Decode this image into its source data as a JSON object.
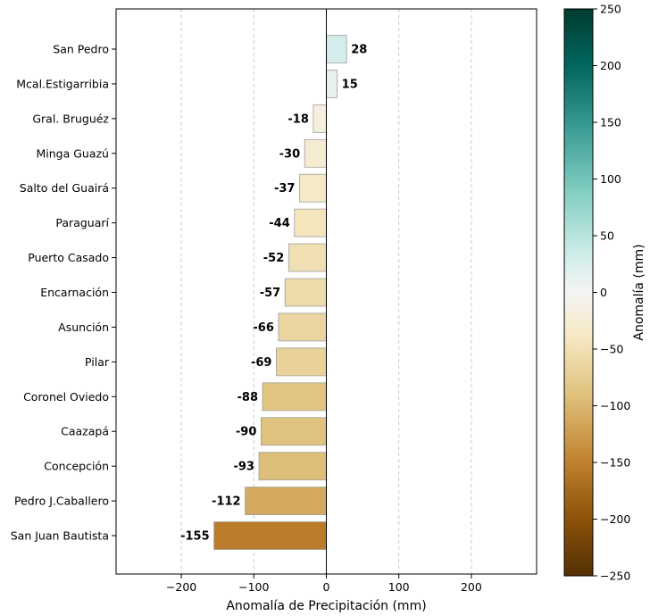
{
  "chart_data": {
    "type": "bar",
    "orientation": "horizontal",
    "xlabel": "Anomalía de Precipitación (mm)",
    "ylabel": "",
    "title": "",
    "xlim": [
      -290,
      290
    ],
    "xticks": [
      -200,
      -100,
      0,
      100,
      200
    ],
    "grid": "vertical dashed",
    "categories": [
      "San Pedro",
      "Mcal.Estigarribia",
      "Gral. Bruguéz",
      "Minga Guazú",
      "Salto del Guairá",
      "Paraguarí",
      "Puerto Casado",
      "Encarnación",
      "Asunción",
      "Pilar",
      "Coronel Oviedo",
      "Caazapá",
      "Concepción",
      "Pedro J.Caballero",
      "San Juan Bautista"
    ],
    "values": [
      28,
      15,
      -18,
      -30,
      -37,
      -44,
      -52,
      -57,
      -66,
      -69,
      -88,
      -90,
      -93,
      -112,
      -155
    ],
    "value_labels": [
      "28",
      "15",
      "-18",
      "-30",
      "-37",
      "-44",
      "-52",
      "-57",
      "-66",
      "-69",
      "-88",
      "-90",
      "-93",
      "-112",
      "-155"
    ],
    "colorbar": {
      "label": "Anomalía (mm)",
      "colormap": "BrBG",
      "range": [
        -250,
        250
      ],
      "ticks": [
        250,
        200,
        150,
        100,
        50,
        0,
        -50,
        -100,
        -150,
        -200,
        -250
      ],
      "tick_labels": [
        "250",
        "200",
        "150",
        "100",
        "50",
        "0",
        "−50",
        "−100",
        "−150",
        "−200",
        "−250"
      ]
    },
    "tick_labels_x": [
      "−200",
      "−100",
      "0",
      "100",
      "200"
    ]
  }
}
